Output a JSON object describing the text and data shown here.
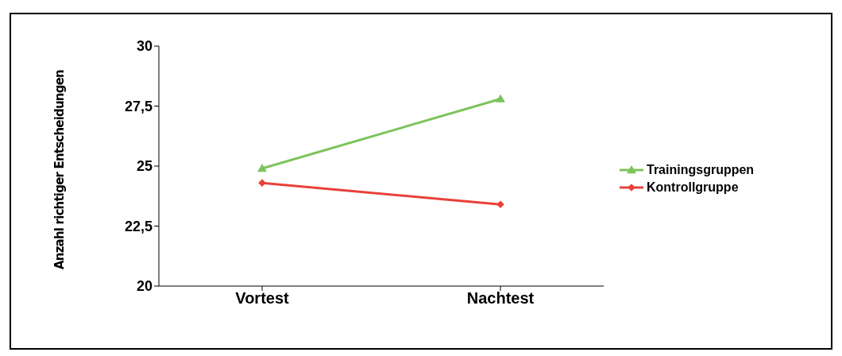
{
  "chart_data": {
    "type": "line",
    "ylabel": "Anzahl richtiger Entscheidungen",
    "categories": [
      "Vortest",
      "Nachtest"
    ],
    "series": [
      {
        "name": "Trainingsgruppen",
        "color": "#7dc35b",
        "marker": "triangle",
        "values": [
          24.9,
          27.8
        ]
      },
      {
        "name": "Kontrollgruppe",
        "color": "#e8413a",
        "marker": "diamond",
        "values": [
          24.3,
          23.4
        ]
      }
    ],
    "ylim": [
      20,
      30
    ],
    "yticks": [
      20,
      {
        "value": 22.5,
        "label": "22,5"
      },
      25,
      {
        "value": 27.5,
        "label": "27,5"
      },
      30
    ],
    "grid": false,
    "legend": "right"
  }
}
